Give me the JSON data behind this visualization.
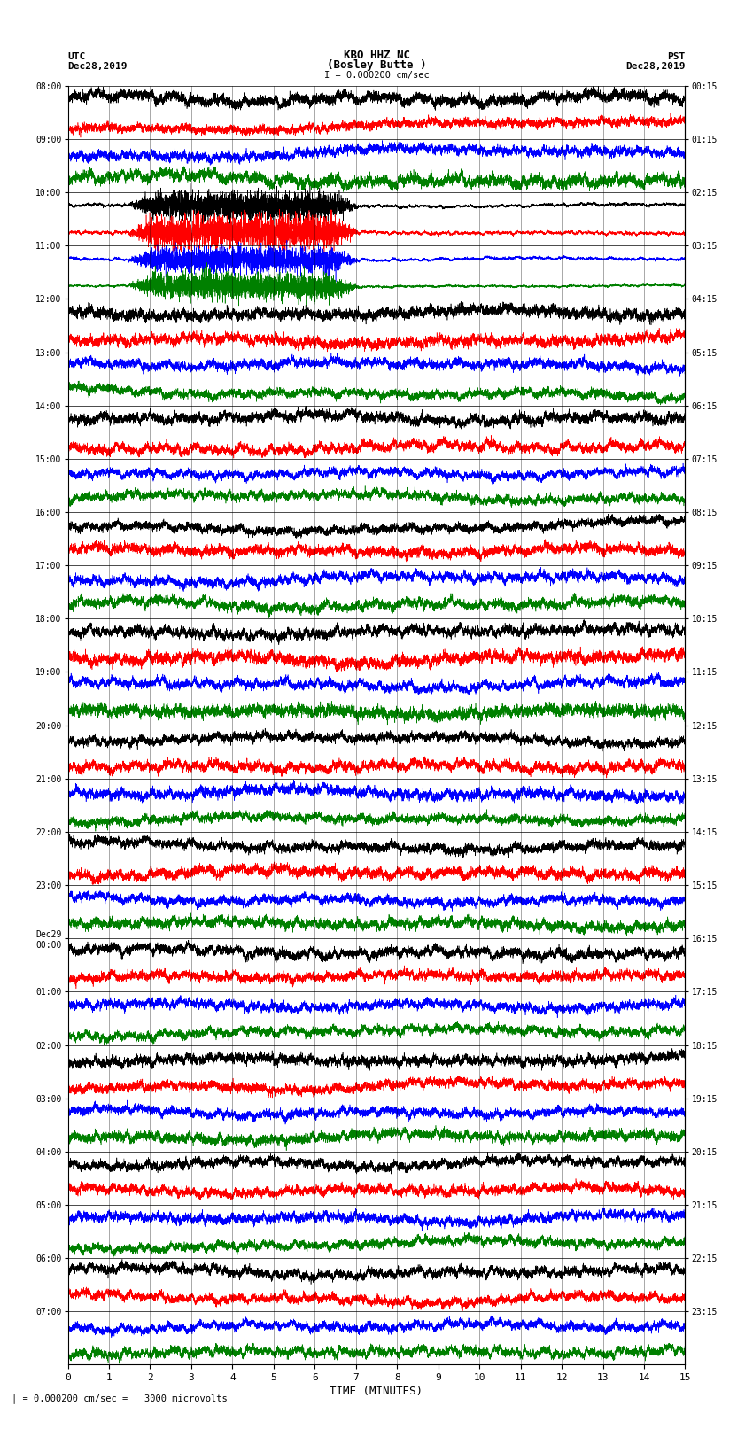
{
  "title_line1": "KBO HHZ NC",
  "title_line2": "(Bosley Butte )",
  "scale_bar": "I = 0.000200 cm/sec",
  "left_label_top": "UTC",
  "left_label_date": "Dec28,2019",
  "right_label_top": "PST",
  "right_label_date": "Dec28,2019",
  "xlabel": "TIME (MINUTES)",
  "bottom_note": "= 0.000200 cm/sec =   3000 microvolts",
  "utc_times": [
    "08:00",
    "09:00",
    "10:00",
    "11:00",
    "12:00",
    "13:00",
    "14:00",
    "15:00",
    "16:00",
    "17:00",
    "18:00",
    "19:00",
    "20:00",
    "21:00",
    "22:00",
    "23:00",
    "Dec29\n00:00",
    "01:00",
    "02:00",
    "03:00",
    "04:00",
    "05:00",
    "06:00",
    "07:00"
  ],
  "pst_times": [
    "00:15",
    "01:15",
    "02:15",
    "03:15",
    "04:15",
    "05:15",
    "06:15",
    "07:15",
    "08:15",
    "09:15",
    "10:15",
    "11:15",
    "12:15",
    "13:15",
    "14:15",
    "15:15",
    "16:15",
    "17:15",
    "18:15",
    "19:15",
    "20:15",
    "21:15",
    "22:15",
    "23:15"
  ],
  "n_traces": 48,
  "n_utc_labels": 24,
  "x_ticks": [
    0,
    1,
    2,
    3,
    4,
    5,
    6,
    7,
    8,
    9,
    10,
    11,
    12,
    13,
    14,
    15
  ],
  "trace_colors": [
    "black",
    "red",
    "blue",
    "green"
  ],
  "fig_width": 8.5,
  "fig_height": 16.13,
  "background_color": "white",
  "plot_bg_color": "white",
  "xmin": 0,
  "xmax": 15,
  "amplitude": 0.48,
  "noise_seed": 42,
  "samples_per_trace": 8000,
  "linewidth": 0.4
}
